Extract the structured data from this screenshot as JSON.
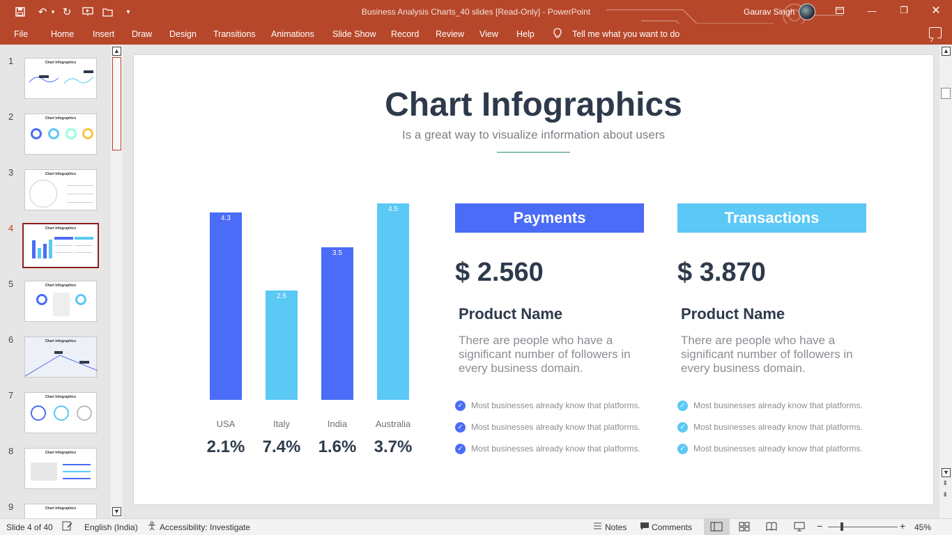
{
  "window": {
    "title": "Business Analysis Charts_40 slides [Read-Only]  -  PowerPoint",
    "user": "Gaurav Singh"
  },
  "quick_access": [
    "save-icon",
    "undo-icon",
    "redo-icon",
    "present-icon",
    "open-icon",
    "customize-icon"
  ],
  "ribbon": {
    "tabs": [
      "File",
      "Home",
      "Insert",
      "Draw",
      "Design",
      "Transitions",
      "Animations",
      "Slide Show",
      "Record",
      "Review",
      "View",
      "Help"
    ],
    "search_placeholder": "Tell me what you want to do"
  },
  "thumbnails": {
    "numbers": [
      "1",
      "2",
      "3",
      "4",
      "5",
      "6",
      "7",
      "8",
      "9"
    ],
    "active": "4",
    "mini_title": "Chart Infographics"
  },
  "slide": {
    "title": "Chart Infographics",
    "subtitle": "Is a great way to visualize information about users"
  },
  "chart_data": {
    "type": "bar",
    "categories": [
      "USA",
      "Italy",
      "India",
      "Australia"
    ],
    "values": [
      4.3,
      2.5,
      3.5,
      4.5
    ],
    "value_labels": [
      "4.3",
      "2.5",
      "3.5",
      "4.5"
    ],
    "percentages": [
      "2.1%",
      "7.4%",
      "1.6%",
      "3.7%"
    ],
    "colors": [
      "#4a6cf7",
      "#5bc8f5",
      "#4a6cf7",
      "#5bc8f5"
    ],
    "ylim": [
      0,
      4.5
    ],
    "grid": false,
    "title": "",
    "xlabel": "",
    "ylabel": ""
  },
  "cards": [
    {
      "header": "Payments",
      "color": "#4a6cf7",
      "price": "$ 2.560",
      "product": "Product Name",
      "description": "There are people who have a significant number of followers in every business domain.",
      "bullets": [
        "Most businesses already know that platforms.",
        "Most businesses already know that platforms.",
        "Most businesses already know that platforms."
      ]
    },
    {
      "header": "Transactions",
      "color": "#5bc8f5",
      "price": "$ 3.870",
      "product": "Product Name",
      "description": "There are people who have a significant number of followers in every business domain.",
      "bullets": [
        "Most businesses already know that platforms.",
        "Most businesses already know that platforms.",
        "Most businesses already know that platforms."
      ]
    }
  ],
  "status": {
    "slide_info": "Slide 4 of 40",
    "language": "English (India)",
    "accessibility": "Accessibility: Investigate",
    "notes": "Notes",
    "comments": "Comments",
    "zoom": "45%"
  }
}
